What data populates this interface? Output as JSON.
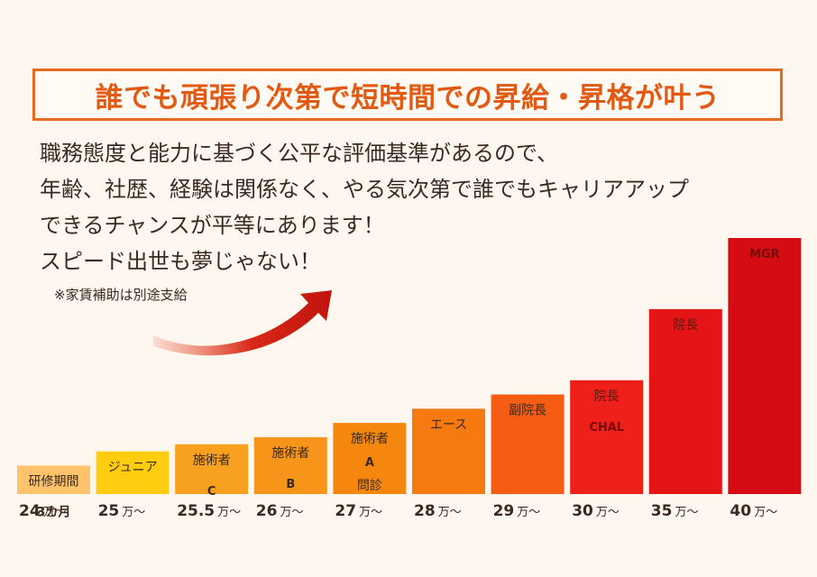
{
  "headline": "誰でも頑張り次第で短時間での昇給・昇格が叶う",
  "body_lines": [
    "職務態度と能力に基づく公平な評価基準があるので、",
    "年齢、社歴、経験は関係なく、やる気次第で誰でもキャリアアップ",
    "できるチャンスが平等にあります！",
    "スピード出世も夢じゃない！"
  ],
  "note": "※家賃補助は別途支給",
  "colors": {
    "accent": "#e25a12",
    "bars": [
      "#ffc46b",
      "#ffcd0f",
      "#f8a020",
      "#f69519",
      "#f6870e",
      "#f67a10",
      "#f65c14",
      "#ef1f1a",
      "#e51417",
      "#d60c14"
    ]
  },
  "chart_data": {
    "type": "bar",
    "unit": "万〜",
    "categories": [
      "研修期間 3カ月",
      "ジュニア",
      "施術者 C",
      "施術者 B",
      "施術者 A 問診",
      "エース",
      "副院長",
      "院長 CHAL",
      "院長",
      "MGR"
    ],
    "values": [
      24,
      25,
      25.5,
      26,
      27,
      28,
      29,
      30,
      35,
      40
    ],
    "value_labels": [
      "24",
      "25",
      "25.5",
      "26",
      "27",
      "28",
      "29",
      "30",
      "35",
      "40"
    ],
    "bar_labels": [
      [
        "研修期間",
        "3カ月"
      ],
      [
        "ジュニア"
      ],
      [
        "施術者",
        "C"
      ],
      [
        "施術者",
        "B"
      ],
      [
        "施術者",
        "A",
        "問診"
      ],
      [
        "エース"
      ],
      [
        "副院長"
      ],
      [
        "院長",
        "CHAL"
      ],
      [
        "院長"
      ],
      [
        "MGR"
      ]
    ],
    "xlabel": "",
    "ylabel": "",
    "ylim": [
      22,
      40
    ],
    "grid": false,
    "legend": "none"
  }
}
